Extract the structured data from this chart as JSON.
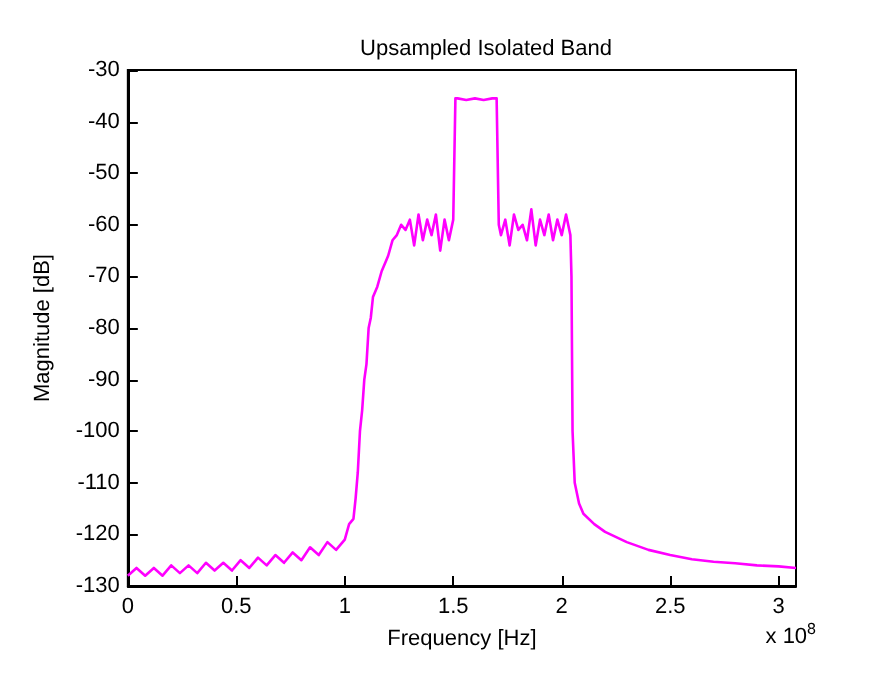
{
  "chart_data": {
    "type": "line",
    "title": "Upsampled Isolated Band",
    "xlabel": "Frequency [Hz]",
    "ylabel": "Magnitude [dB]",
    "annotations": [
      "x 10$^{8}$"
    ],
    "xlim": [
      0,
      3.08
    ],
    "xticks": [
      0,
      0.5,
      1,
      1.5,
      2,
      2.5,
      3
    ],
    "ylim": [
      -130,
      -30
    ],
    "yticks": [
      -130,
      -120,
      -110,
      -100,
      -90,
      -80,
      -70,
      -60,
      -50,
      -40,
      -30
    ],
    "grid": false,
    "marker": "none",
    "line_style": "solid",
    "series": [
      {
        "color": "#ff00ff",
        "x": [
          0,
          0.04,
          0.08,
          0.12,
          0.16,
          0.2,
          0.24,
          0.28,
          0.32,
          0.36,
          0.4,
          0.44,
          0.48,
          0.52,
          0.56,
          0.6,
          0.64,
          0.68,
          0.72,
          0.76,
          0.8,
          0.84,
          0.88,
          0.92,
          0.96,
          1.0,
          1.02,
          1.04,
          1.05,
          1.06,
          1.07,
          1.08,
          1.09,
          1.1,
          1.11,
          1.12,
          1.13,
          1.15,
          1.17,
          1.19,
          1.2,
          1.22,
          1.24,
          1.26,
          1.28,
          1.3,
          1.32,
          1.34,
          1.36,
          1.38,
          1.4,
          1.42,
          1.44,
          1.46,
          1.48,
          1.5,
          1.51,
          1.52,
          1.56,
          1.6,
          1.64,
          1.68,
          1.7,
          1.71,
          1.72,
          1.74,
          1.76,
          1.78,
          1.8,
          1.82,
          1.84,
          1.86,
          1.88,
          1.9,
          1.92,
          1.94,
          1.96,
          1.98,
          2.0,
          2.02,
          2.04,
          2.045,
          2.05,
          2.06,
          2.08,
          2.1,
          2.15,
          2.2,
          2.3,
          2.4,
          2.5,
          2.6,
          2.7,
          2.8,
          2.9,
          3.0,
          3.08
        ],
        "values": [
          -128,
          -126.5,
          -128,
          -126.5,
          -128,
          -126,
          -127.5,
          -126,
          -127.5,
          -125.5,
          -127,
          -125.5,
          -127,
          -125,
          -126.5,
          -124.5,
          -126,
          -124,
          -125.5,
          -123.5,
          -125,
          -122.5,
          -124,
          -121.5,
          -123,
          -121,
          -118,
          -117,
          -113,
          -108,
          -100,
          -96,
          -90,
          -87,
          -80,
          -78,
          -74,
          -72,
          -69,
          -67,
          -66,
          -63,
          -62,
          -60,
          -61,
          -59,
          -64,
          -58,
          -63,
          -59,
          -62,
          -58,
          -65,
          -59,
          -63,
          -59,
          -35.5,
          -35.5,
          -35.8,
          -35.5,
          -35.8,
          -35.5,
          -35.5,
          -60,
          -62,
          -59,
          -64,
          -58,
          -61,
          -60,
          -63,
          -57,
          -64,
          -59,
          -62,
          -58,
          -63,
          -59,
          -62,
          -58,
          -62,
          -70,
          -100,
          -110,
          -114,
          -116,
          -118,
          -119.5,
          -121.5,
          -123,
          -124,
          -124.8,
          -125.3,
          -125.6,
          -126,
          -126.2,
          -126.5
        ]
      }
    ]
  }
}
